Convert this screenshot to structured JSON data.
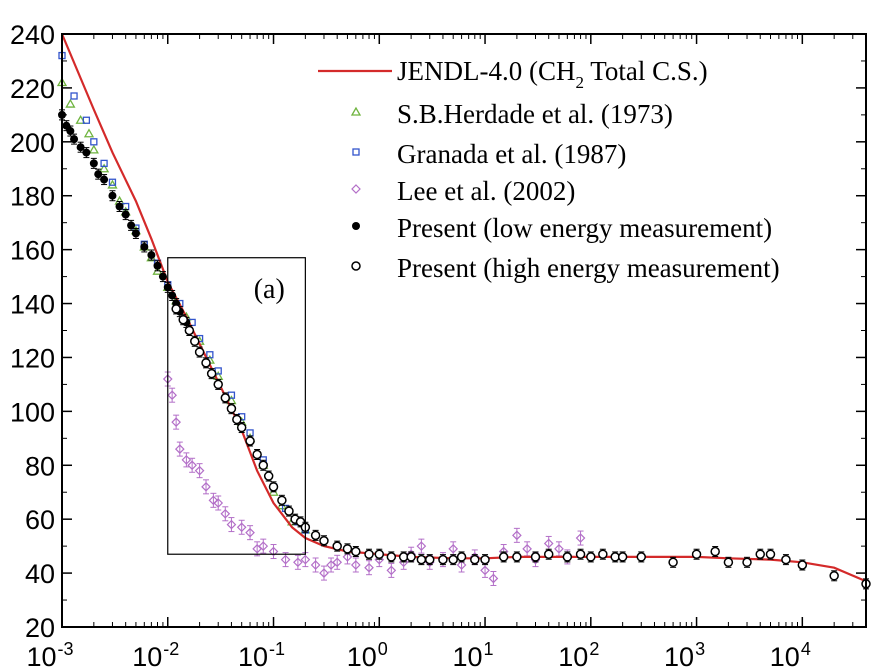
{
  "chart_data": {
    "type": "scatter",
    "xscale": "log",
    "xlim": [
      0.001,
      40000
    ],
    "ylim": [
      20,
      240
    ],
    "xticks": [
      {
        "value": 0.001,
        "base": "10",
        "exp": "-3"
      },
      {
        "value": 0.01,
        "base": "10",
        "exp": "-2"
      },
      {
        "value": 0.1,
        "base": "10",
        "exp": "-1"
      },
      {
        "value": 1,
        "base": "10",
        "exp": "0"
      },
      {
        "value": 10,
        "base": "10",
        "exp": "1"
      },
      {
        "value": 100,
        "base": "10",
        "exp": "2"
      },
      {
        "value": 1000,
        "base": "10",
        "exp": "3"
      },
      {
        "value": 10000,
        "base": "10",
        "exp": "4"
      }
    ],
    "yticks": [
      "20",
      "40",
      "60",
      "80",
      "100",
      "120",
      "140",
      "160",
      "180",
      "200",
      "220",
      "240"
    ],
    "grid": false,
    "legend_position": "top-right",
    "panel_label": "(a)",
    "inset_box": {
      "x": [
        0.01,
        0.2
      ],
      "y": [
        47,
        157
      ]
    },
    "colors": {
      "jendl": "#d42a2a",
      "herdade": "#6fb43f",
      "granada": "#3355cc",
      "lee": "#b36fc8",
      "present_low": "#000000",
      "present_high": "#000000"
    },
    "legend": [
      {
        "key": "jendl",
        "label": "JENDL-4.0 (CH",
        "sub": "2",
        "label_after": " Total C.S.)",
        "marker": "line"
      },
      {
        "key": "herdade",
        "label": "S.B.Herdade et al. (1973)",
        "marker": "triangle"
      },
      {
        "key": "granada",
        "label": "Granada et al. (1987)",
        "marker": "square"
      },
      {
        "key": "lee",
        "label": "Lee et al. (2002)",
        "marker": "diamond"
      },
      {
        "key": "present_low",
        "label": "Present (low energy measurement)",
        "marker": "filled-circle"
      },
      {
        "key": "present_high",
        "label": "Present (high energy measurement)",
        "marker": "open-circle"
      }
    ],
    "series": [
      {
        "key": "jendl",
        "name": "JENDL-4.0 (CH2 Total C.S.)",
        "style": "line",
        "x": [
          0.001,
          0.002,
          0.003,
          0.005,
          0.007,
          0.01,
          0.015,
          0.02,
          0.03,
          0.05,
          0.07,
          0.1,
          0.15,
          0.2,
          0.3,
          0.5,
          1,
          2,
          5,
          10,
          20,
          50,
          100,
          200,
          500,
          1000,
          2000,
          5000,
          10000,
          20000,
          40000
        ],
        "y": [
          240,
          212,
          196,
          178,
          164,
          148,
          135,
          125,
          111,
          93,
          78,
          66,
          57,
          53,
          50,
          48,
          47,
          46,
          45.5,
          45.5,
          46,
          46,
          46,
          46,
          46,
          46,
          45.5,
          45,
          44,
          42,
          37
        ]
      },
      {
        "key": "herdade",
        "name": "S.B.Herdade et al. (1973)",
        "style": "triangle",
        "x": [
          0.001,
          0.0012,
          0.0015,
          0.0018,
          0.002,
          0.0025,
          0.003,
          0.0035,
          0.004,
          0.005,
          0.006,
          0.007,
          0.008,
          0.01,
          0.012,
          0.015,
          0.02,
          0.025,
          0.03,
          0.04,
          0.05,
          0.06,
          0.08,
          0.1,
          0.12,
          0.15,
          0.2
        ],
        "y": [
          222,
          214,
          208,
          203,
          197,
          190,
          184,
          178,
          174,
          167,
          161,
          157,
          152,
          146,
          141,
          135,
          126,
          119,
          113,
          104,
          96,
          90,
          80,
          70,
          65,
          59,
          56
        ]
      },
      {
        "key": "granada",
        "name": "Granada et al. (1987)",
        "style": "square",
        "x": [
          0.001,
          0.0013,
          0.0017,
          0.002,
          0.0025,
          0.003,
          0.004,
          0.005,
          0.006,
          0.008,
          0.01,
          0.013,
          0.017,
          0.02,
          0.025,
          0.03,
          0.04,
          0.05,
          0.06,
          0.08,
          0.1,
          0.13,
          0.17,
          0.2
        ],
        "y": [
          232,
          217,
          208,
          200,
          192,
          185,
          176,
          168,
          162,
          155,
          147,
          140,
          133,
          127,
          121,
          115,
          106,
          98,
          92,
          82,
          72,
          64,
          59,
          56
        ]
      },
      {
        "key": "lee",
        "name": "Lee et al. (2002)",
        "style": "diamond",
        "x": [
          0.01,
          0.011,
          0.012,
          0.013,
          0.015,
          0.017,
          0.02,
          0.023,
          0.027,
          0.03,
          0.035,
          0.04,
          0.05,
          0.06,
          0.07,
          0.08,
          0.1,
          0.13,
          0.17,
          0.2,
          0.25,
          0.3,
          0.35,
          0.4,
          0.5,
          0.6,
          0.8,
          1,
          1.3,
          1.7,
          2,
          2.5,
          3,
          4,
          5,
          6,
          8,
          10,
          12,
          15,
          20,
          25,
          30,
          40,
          50,
          60,
          80
        ],
        "y": [
          112,
          106,
          96,
          86,
          82,
          80,
          78,
          72,
          67,
          66,
          62,
          58,
          57,
          55,
          49,
          50,
          48,
          45,
          44,
          45,
          43,
          40,
          43,
          44,
          46,
          43,
          42,
          45,
          41,
          44,
          47,
          50,
          44,
          45,
          49,
          43,
          46,
          41,
          38,
          48,
          54,
          49,
          45,
          51,
          49,
          46,
          53
        ]
      },
      {
        "key": "present_low",
        "name": "Present (low energy measurement)",
        "style": "filled-circle",
        "x": [
          0.001,
          0.0011,
          0.0012,
          0.0013,
          0.0015,
          0.0017,
          0.002,
          0.0022,
          0.0025,
          0.003,
          0.0035,
          0.004,
          0.0045,
          0.005,
          0.006,
          0.007,
          0.008,
          0.009,
          0.01,
          0.011,
          0.012,
          0.013,
          0.015
        ],
        "y": [
          210,
          206,
          204,
          201,
          198,
          196,
          192,
          188,
          186,
          180,
          176,
          173,
          169,
          166,
          161,
          158,
          154,
          150,
          146,
          143,
          140,
          137,
          133
        ]
      },
      {
        "key": "present_high",
        "name": "Present (high energy measurement)",
        "style": "open-circle",
        "x": [
          0.012,
          0.014,
          0.016,
          0.018,
          0.02,
          0.023,
          0.026,
          0.03,
          0.035,
          0.04,
          0.045,
          0.05,
          0.06,
          0.07,
          0.08,
          0.09,
          0.1,
          0.12,
          0.14,
          0.16,
          0.18,
          0.2,
          0.25,
          0.3,
          0.4,
          0.5,
          0.6,
          0.8,
          1,
          1.3,
          1.7,
          2,
          2.5,
          3,
          4,
          5,
          6,
          8,
          10,
          15,
          20,
          30,
          40,
          60,
          80,
          100,
          130,
          170,
          200,
          300,
          600,
          1000,
          1500,
          2000,
          3000,
          4000,
          5000,
          7000,
          10000,
          20000,
          40000
        ],
        "y": [
          138,
          134,
          130,
          126,
          122,
          118,
          114,
          110,
          105,
          101,
          97,
          94,
          89,
          84,
          80,
          76,
          72,
          67,
          63,
          60,
          59,
          57,
          54,
          52,
          50,
          49,
          48,
          47,
          47,
          46,
          46,
          46,
          45,
          45,
          45,
          45,
          46,
          45,
          45,
          46,
          46,
          46,
          47,
          46,
          47,
          46,
          47,
          46,
          46,
          46,
          44,
          47,
          48,
          44,
          44,
          47,
          47,
          45,
          43,
          39,
          36
        ]
      }
    ]
  }
}
